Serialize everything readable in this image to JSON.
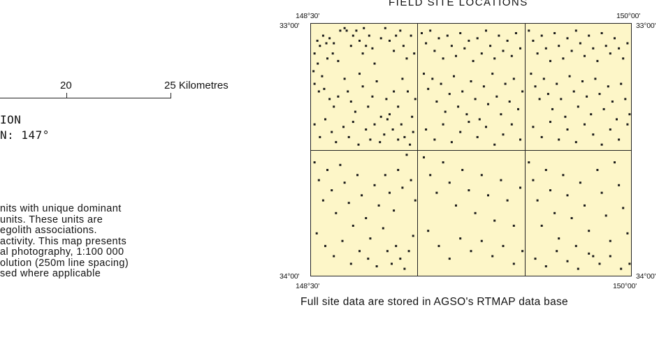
{
  "scale_bar": {
    "labels": [
      "20",
      "25 Kilometres"
    ]
  },
  "projection": {
    "line1": "ION",
    "line2": "N: 147°"
  },
  "notes": [
    "nits with unique dominant",
    "units. These units are",
    "egolith associations.",
    "activity. This map presents",
    "al photography, 1:100 000",
    "olution (250m line spacing)",
    "sed where applicable"
  ],
  "map": {
    "title": "FIELD SITE LOCATIONS",
    "coords": {
      "top_left_lon": "148°30'",
      "top_right_lon": "150°00'",
      "bottom_left_lon": "148°30'",
      "bottom_right_lon": "150°00'",
      "top_left_lat": "33°00'",
      "top_right_lat": "33°00'",
      "bottom_left_lat": "34°00'",
      "bottom_right_lat": "34°00'"
    },
    "caption": "Full site data are stored in AGSO's RTMAP data base",
    "colors": {
      "fill": "#fdf6c8",
      "border": "#222222",
      "site": "#1a1a1a"
    },
    "grid": {
      "columns": 3,
      "rows": 2
    },
    "extent": {
      "lon": [
        148.5,
        150.0
      ],
      "lat": [
        -34.0,
        -33.0
      ]
    },
    "sites": [
      [
        148.533,
        -33.07
      ],
      [
        148.545,
        -33.09
      ],
      [
        148.56,
        -33.05
      ],
      [
        148.575,
        -33.08
      ],
      [
        148.59,
        -33.06
      ],
      [
        148.52,
        -33.12
      ],
      [
        148.515,
        -33.19
      ],
      [
        148.535,
        -33.16
      ],
      [
        148.555,
        -33.21
      ],
      [
        148.58,
        -33.14
      ],
      [
        148.61,
        -33.08
      ],
      [
        148.605,
        -33.12
      ],
      [
        148.63,
        -33.15
      ],
      [
        148.64,
        -33.03
      ],
      [
        148.66,
        -33.02
      ],
      [
        148.67,
        -33.03
      ],
      [
        148.69,
        -33.09
      ],
      [
        148.7,
        -33.05
      ],
      [
        148.715,
        -33.03
      ],
      [
        148.73,
        -33.07
      ],
      [
        148.745,
        -33.12
      ],
      [
        148.76,
        -33.09
      ],
      [
        148.75,
        -33.02
      ],
      [
        148.775,
        -33.05
      ],
      [
        148.79,
        -33.1
      ],
      [
        148.8,
        -33.16
      ],
      [
        148.83,
        -33.06
      ],
      [
        148.85,
        -33.02
      ],
      [
        148.87,
        -33.07
      ],
      [
        148.89,
        -33.11
      ],
      [
        148.9,
        -33.05
      ],
      [
        148.92,
        -33.03
      ],
      [
        148.935,
        -33.09
      ],
      [
        148.95,
        -33.14
      ],
      [
        148.97,
        -33.05
      ],
      [
        148.985,
        -33.12
      ],
      [
        148.52,
        -33.24
      ],
      [
        148.54,
        -33.27
      ],
      [
        148.565,
        -33.26
      ],
      [
        148.59,
        -33.3
      ],
      [
        148.61,
        -33.33
      ],
      [
        148.63,
        -33.29
      ],
      [
        148.66,
        -33.22
      ],
      [
        148.675,
        -33.27
      ],
      [
        148.69,
        -33.31
      ],
      [
        148.71,
        -33.35
      ],
      [
        148.73,
        -33.2
      ],
      [
        148.745,
        -33.25
      ],
      [
        148.77,
        -33.33
      ],
      [
        148.79,
        -33.29
      ],
      [
        148.81,
        -33.23
      ],
      [
        148.83,
        -33.37
      ],
      [
        148.855,
        -33.3
      ],
      [
        148.87,
        -33.36
      ],
      [
        148.89,
        -33.27
      ],
      [
        148.91,
        -33.33
      ],
      [
        148.93,
        -33.22
      ],
      [
        148.955,
        -33.27
      ],
      [
        148.975,
        -33.37
      ],
      [
        148.99,
        -33.3
      ],
      [
        148.52,
        -33.4
      ],
      [
        148.545,
        -33.45
      ],
      [
        148.57,
        -33.38
      ],
      [
        148.6,
        -33.43
      ],
      [
        148.62,
        -33.47
      ],
      [
        148.655,
        -33.41
      ],
      [
        148.68,
        -33.45
      ],
      [
        148.7,
        -33.39
      ],
      [
        148.725,
        -33.48
      ],
      [
        148.76,
        -33.42
      ],
      [
        148.78,
        -33.46
      ],
      [
        148.8,
        -33.4
      ],
      [
        148.825,
        -33.47
      ],
      [
        148.845,
        -33.44
      ],
      [
        148.86,
        -33.38
      ],
      [
        148.885,
        -33.42
      ],
      [
        148.91,
        -33.46
      ],
      [
        148.925,
        -33.4
      ],
      [
        148.94,
        -33.45
      ],
      [
        148.965,
        -33.48
      ],
      [
        148.98,
        -33.43
      ],
      [
        149.02,
        -33.04
      ],
      [
        149.04,
        -33.08
      ],
      [
        149.06,
        -33.03
      ],
      [
        149.08,
        -33.11
      ],
      [
        149.1,
        -33.06
      ],
      [
        149.12,
        -33.14
      ],
      [
        149.14,
        -33.05
      ],
      [
        149.16,
        -33.09
      ],
      [
        149.18,
        -33.13
      ],
      [
        149.2,
        -33.04
      ],
      [
        149.22,
        -33.1
      ],
      [
        149.24,
        -33.07
      ],
      [
        149.26,
        -33.15
      ],
      [
        149.28,
        -33.06
      ],
      [
        149.3,
        -33.12
      ],
      [
        149.32,
        -33.03
      ],
      [
        149.34,
        -33.09
      ],
      [
        149.36,
        -33.14
      ],
      [
        149.38,
        -33.05
      ],
      [
        149.4,
        -33.11
      ],
      [
        149.42,
        -33.07
      ],
      [
        149.44,
        -33.13
      ],
      [
        149.46,
        -33.04
      ],
      [
        149.48,
        -33.1
      ],
      [
        149.03,
        -33.2
      ],
      [
        149.05,
        -33.26
      ],
      [
        149.07,
        -33.22
      ],
      [
        149.09,
        -33.31
      ],
      [
        149.11,
        -33.24
      ],
      [
        149.13,
        -33.35
      ],
      [
        149.15,
        -33.28
      ],
      [
        149.17,
        -33.21
      ],
      [
        149.19,
        -33.33
      ],
      [
        149.21,
        -33.27
      ],
      [
        149.23,
        -33.36
      ],
      [
        149.25,
        -33.23
      ],
      [
        149.27,
        -33.3
      ],
      [
        149.29,
        -33.38
      ],
      [
        149.31,
        -33.25
      ],
      [
        149.33,
        -33.32
      ],
      [
        149.35,
        -33.2
      ],
      [
        149.37,
        -33.29
      ],
      [
        149.39,
        -33.36
      ],
      [
        149.41,
        -33.24
      ],
      [
        149.43,
        -33.31
      ],
      [
        149.45,
        -33.22
      ],
      [
        149.47,
        -33.34
      ],
      [
        149.49,
        -33.27
      ],
      [
        149.04,
        -33.42
      ],
      [
        149.08,
        -33.46
      ],
      [
        149.12,
        -33.4
      ],
      [
        149.16,
        -33.47
      ],
      [
        149.2,
        -33.43
      ],
      [
        149.24,
        -33.39
      ],
      [
        149.28,
        -33.45
      ],
      [
        149.32,
        -33.41
      ],
      [
        149.36,
        -33.48
      ],
      [
        149.4,
        -33.44
      ],
      [
        149.44,
        -33.4
      ],
      [
        149.48,
        -33.46
      ],
      [
        149.52,
        -33.03
      ],
      [
        149.54,
        -33.07
      ],
      [
        149.56,
        -33.12
      ],
      [
        149.58,
        -33.05
      ],
      [
        149.6,
        -33.1
      ],
      [
        149.62,
        -33.15
      ],
      [
        149.64,
        -33.04
      ],
      [
        149.66,
        -33.09
      ],
      [
        149.68,
        -33.14
      ],
      [
        149.7,
        -33.06
      ],
      [
        149.72,
        -33.11
      ],
      [
        149.74,
        -33.03
      ],
      [
        149.76,
        -33.08
      ],
      [
        149.78,
        -33.13
      ],
      [
        149.8,
        -33.05
      ],
      [
        149.82,
        -33.1
      ],
      [
        149.84,
        -33.15
      ],
      [
        149.86,
        -33.04
      ],
      [
        149.88,
        -33.09
      ],
      [
        149.9,
        -33.12
      ],
      [
        149.92,
        -33.06
      ],
      [
        149.94,
        -33.1
      ],
      [
        149.96,
        -33.14
      ],
      [
        149.98,
        -33.08
      ],
      [
        149.53,
        -33.2
      ],
      [
        149.55,
        -33.25
      ],
      [
        149.57,
        -33.3
      ],
      [
        149.59,
        -33.22
      ],
      [
        149.61,
        -33.28
      ],
      [
        149.63,
        -33.34
      ],
      [
        149.65,
        -33.24
      ],
      [
        149.67,
        -33.3
      ],
      [
        149.69,
        -33.37
      ],
      [
        149.71,
        -33.21
      ],
      [
        149.73,
        -33.27
      ],
      [
        149.75,
        -33.33
      ],
      [
        149.77,
        -33.23
      ],
      [
        149.79,
        -33.29
      ],
      [
        149.81,
        -33.36
      ],
      [
        149.83,
        -33.22
      ],
      [
        149.85,
        -33.28
      ],
      [
        149.87,
        -33.34
      ],
      [
        149.89,
        -33.25
      ],
      [
        149.91,
        -33.31
      ],
      [
        149.93,
        -33.38
      ],
      [
        149.95,
        -33.24
      ],
      [
        149.97,
        -33.3
      ],
      [
        149.99,
        -33.36
      ],
      [
        149.54,
        -33.41
      ],
      [
        149.58,
        -33.45
      ],
      [
        149.62,
        -33.39
      ],
      [
        149.66,
        -33.46
      ],
      [
        149.7,
        -33.42
      ],
      [
        149.74,
        -33.47
      ],
      [
        149.78,
        -33.4
      ],
      [
        149.82,
        -33.44
      ],
      [
        149.86,
        -33.48
      ],
      [
        149.9,
        -33.42
      ],
      [
        149.94,
        -33.46
      ],
      [
        149.98,
        -33.4
      ],
      [
        148.52,
        -33.55
      ],
      [
        148.54,
        -33.62
      ],
      [
        148.56,
        -33.7
      ],
      [
        148.58,
        -33.58
      ],
      [
        148.6,
        -33.66
      ],
      [
        148.62,
        -33.75
      ],
      [
        148.64,
        -33.56
      ],
      [
        148.66,
        -33.63
      ],
      [
        148.68,
        -33.71
      ],
      [
        148.7,
        -33.8
      ],
      [
        148.72,
        -33.6
      ],
      [
        148.74,
        -33.68
      ],
      [
        148.76,
        -33.77
      ],
      [
        148.78,
        -33.85
      ],
      [
        148.8,
        -33.64
      ],
      [
        148.82,
        -33.72
      ],
      [
        148.84,
        -33.81
      ],
      [
        148.86,
        -33.9
      ],
      [
        148.88,
        -33.95
      ],
      [
        148.9,
        -33.88
      ],
      [
        148.92,
        -33.93
      ],
      [
        148.94,
        -33.97
      ],
      [
        148.96,
        -33.9
      ],
      [
        148.98,
        -33.84
      ],
      [
        148.53,
        -33.83
      ],
      [
        148.57,
        -33.88
      ],
      [
        148.61,
        -33.92
      ],
      [
        148.65,
        -33.86
      ],
      [
        148.69,
        -33.95
      ],
      [
        148.73,
        -33.9
      ],
      [
        148.77,
        -33.93
      ],
      [
        148.81,
        -33.96
      ],
      [
        148.85,
        -33.6
      ],
      [
        148.87,
        -33.67
      ],
      [
        148.89,
        -33.74
      ],
      [
        148.91,
        -33.58
      ],
      [
        148.93,
        -33.65
      ],
      [
        148.95,
        -33.52
      ],
      [
        148.97,
        -33.62
      ],
      [
        148.99,
        -33.7
      ],
      [
        149.03,
        -33.53
      ],
      [
        149.06,
        -33.6
      ],
      [
        149.09,
        -33.67
      ],
      [
        149.12,
        -33.55
      ],
      [
        149.15,
        -33.63
      ],
      [
        149.18,
        -33.72
      ],
      [
        149.21,
        -33.58
      ],
      [
        149.24,
        -33.66
      ],
      [
        149.27,
        -33.75
      ],
      [
        149.3,
        -33.6
      ],
      [
        149.33,
        -33.68
      ],
      [
        149.36,
        -33.78
      ],
      [
        149.39,
        -33.62
      ],
      [
        149.42,
        -33.7
      ],
      [
        149.45,
        -33.8
      ],
      [
        149.48,
        -33.65
      ],
      [
        149.05,
        -33.82
      ],
      [
        149.1,
        -33.88
      ],
      [
        149.15,
        -33.93
      ],
      [
        149.2,
        -33.85
      ],
      [
        149.25,
        -33.9
      ],
      [
        149.3,
        -33.86
      ],
      [
        149.35,
        -33.92
      ],
      [
        149.4,
        -33.88
      ],
      [
        149.45,
        -33.95
      ],
      [
        149.49,
        -33.9
      ],
      [
        149.52,
        -33.55
      ],
      [
        149.54,
        -33.62
      ],
      [
        149.56,
        -33.7
      ],
      [
        149.58,
        -33.8
      ],
      [
        149.6,
        -33.58
      ],
      [
        149.62,
        -33.66
      ],
      [
        149.64,
        -33.75
      ],
      [
        149.66,
        -33.85
      ],
      [
        149.68,
        -33.6
      ],
      [
        149.7,
        -33.68
      ],
      [
        149.72,
        -33.77
      ],
      [
        149.74,
        -33.88
      ],
      [
        149.76,
        -33.63
      ],
      [
        149.78,
        -33.72
      ],
      [
        149.8,
        -33.82
      ],
      [
        149.82,
        -33.92
      ],
      [
        149.84,
        -33.58
      ],
      [
        149.86,
        -33.67
      ],
      [
        149.88,
        -33.76
      ],
      [
        149.9,
        -33.86
      ],
      [
        149.92,
        -33.55
      ],
      [
        149.94,
        -33.64
      ],
      [
        149.96,
        -33.73
      ],
      [
        149.98,
        -33.83
      ],
      [
        149.99,
        -33.95
      ],
      [
        149.55,
        -33.93
      ],
      [
        149.6,
        -33.96
      ],
      [
        149.65,
        -33.9
      ],
      [
        149.7,
        -33.94
      ],
      [
        149.75,
        -33.97
      ],
      [
        149.8,
        -33.91
      ],
      [
        149.85,
        -33.95
      ],
      [
        149.9,
        -33.92
      ],
      [
        149.95,
        -33.97
      ]
    ]
  }
}
